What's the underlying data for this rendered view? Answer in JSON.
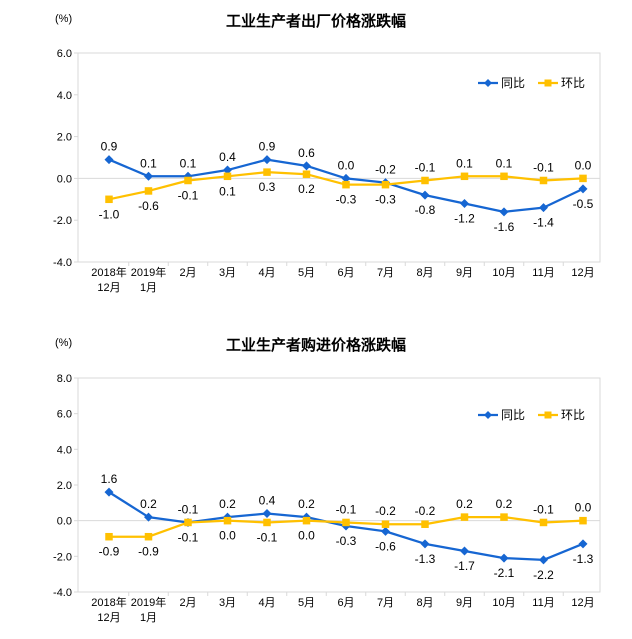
{
  "page": {
    "background": "#ffffff"
  },
  "colors": {
    "axis_line": "#d9d9d9",
    "text": "#000000",
    "yoy_blue": "#1666d2",
    "mom_yellow": "#ffc000"
  },
  "chart_data": [
    {
      "type": "line",
      "title": "工业生产者出厂价格涨跌幅",
      "unit_label": "(%)",
      "categories": [
        [
          "2018年",
          "12月"
        ],
        [
          "2019年",
          "1月"
        ],
        [
          "2月"
        ],
        [
          "3月"
        ],
        [
          "4月"
        ],
        [
          "5月"
        ],
        [
          "6月"
        ],
        [
          "7月"
        ],
        [
          "8月"
        ],
        [
          "9月"
        ],
        [
          "10月"
        ],
        [
          "11月"
        ],
        [
          "12月"
        ]
      ],
      "ylim": [
        -4.0,
        6.0
      ],
      "ytick_step": 2.0,
      "grid": "zero-line-only",
      "legend_position": "inside-top-right",
      "series": [
        {
          "id": "yoy",
          "name": "同比",
          "color": "#1666d2",
          "marker": "diamond",
          "values": [
            0.9,
            0.1,
            0.1,
            0.4,
            0.9,
            0.6,
            0.0,
            -0.2,
            -0.8,
            -1.2,
            -1.6,
            -1.4,
            -0.5
          ]
        },
        {
          "id": "mom",
          "name": "环比",
          "color": "#ffc000",
          "marker": "square",
          "values": [
            -1.0,
            -0.6,
            -0.1,
            0.1,
            0.3,
            0.2,
            -0.3,
            -0.3,
            -0.1,
            0.1,
            0.1,
            -0.1,
            0.0
          ]
        }
      ]
    },
    {
      "type": "line",
      "title": "工业生产者购进价格涨跌幅",
      "unit_label": "(%)",
      "categories": [
        [
          "2018年",
          "12月"
        ],
        [
          "2019年",
          "1月"
        ],
        [
          "2月"
        ],
        [
          "3月"
        ],
        [
          "4月"
        ],
        [
          "5月"
        ],
        [
          "6月"
        ],
        [
          "7月"
        ],
        [
          "8月"
        ],
        [
          "9月"
        ],
        [
          "10月"
        ],
        [
          "11月"
        ],
        [
          "12月"
        ]
      ],
      "ylim": [
        -4.0,
        8.0
      ],
      "ytick_step": 2.0,
      "grid": "zero-line-only",
      "legend_position": "inside-top-right",
      "series": [
        {
          "id": "yoy",
          "name": "同比",
          "color": "#1666d2",
          "marker": "diamond",
          "values": [
            1.6,
            0.2,
            -0.1,
            0.2,
            0.4,
            0.2,
            -0.3,
            -0.6,
            -1.3,
            -1.7,
            -2.1,
            -2.2,
            -1.3
          ]
        },
        {
          "id": "mom",
          "name": "环比",
          "color": "#ffc000",
          "marker": "square",
          "values": [
            -0.9,
            -0.9,
            -0.1,
            0.0,
            -0.1,
            0.0,
            -0.1,
            -0.2,
            -0.2,
            0.2,
            0.2,
            -0.1,
            0.0
          ]
        }
      ]
    }
  ]
}
